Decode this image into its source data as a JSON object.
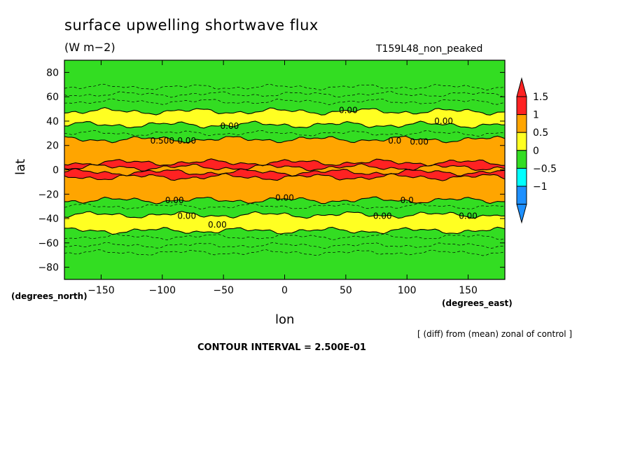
{
  "chart_data": {
    "type": "heatmap",
    "title": "surface upwelling shortwave flux",
    "units": "(W m−2)",
    "run_label": "T159L48_non_peaked",
    "xlabel": "lon",
    "ylabel": "lat",
    "x_unit_label": "(degrees_east)",
    "y_unit_label": "(degrees_north)",
    "xlim": [
      -180,
      180
    ],
    "ylim": [
      -90,
      90
    ],
    "x_ticks": [
      -150,
      -100,
      -50,
      0,
      50,
      100,
      150
    ],
    "y_ticks": [
      80,
      60,
      40,
      20,
      0,
      -20,
      -40,
      -60,
      -80
    ],
    "note": "[ (diff) from (mean) zonal of control ]",
    "contour_interval_text": "CONTOUR INTERVAL = 2.500E-01",
    "colorbar": {
      "labels": [
        "1.5",
        "1",
        "0.5",
        "0",
        "−0.5",
        "−1"
      ],
      "levels": [
        -1.5,
        -1,
        -0.5,
        0,
        0.5,
        1,
        1.5
      ],
      "colors": [
        "#1e90ff",
        "#1e90ff",
        "#00ffff",
        "#33dd22",
        "#ffff22",
        "#ffa500",
        "#ff2222",
        "#ff2222"
      ]
    },
    "zonal_bands": [
      {
        "lat_min": 48,
        "lat_max": 90,
        "value": -0.25
      },
      {
        "lat_min": 37,
        "lat_max": 48,
        "value": 0.25
      },
      {
        "lat_min": 25,
        "lat_max": 37,
        "value": -0.25
      },
      {
        "lat_min": 6,
        "lat_max": 25,
        "value": 0.75
      },
      {
        "lat_min": 2,
        "lat_max": 6,
        "value": 1.75
      },
      {
        "lat_min": -2,
        "lat_max": 2,
        "value": 0.75
      },
      {
        "lat_min": -6,
        "lat_max": -2,
        "value": 1.75
      },
      {
        "lat_min": -25,
        "lat_max": -6,
        "value": 0.75
      },
      {
        "lat_min": -37,
        "lat_max": -25,
        "value": -0.25
      },
      {
        "lat_min": -50,
        "lat_max": -37,
        "value": 0.25
      },
      {
        "lat_min": -90,
        "lat_max": -50,
        "value": -0.25
      }
    ],
    "contour_labels": [
      {
        "text": "0.00",
        "lon": 52,
        "lat": 49
      },
      {
        "text": "0.00",
        "lon": -45,
        "lat": 36
      },
      {
        "text": "0.00",
        "lon": 130,
        "lat": 40
      },
      {
        "text": "0.500",
        "lon": -100,
        "lat": 24
      },
      {
        "text": "0.00",
        "lon": -80,
        "lat": 24
      },
      {
        "text": "0.0",
        "lon": 90,
        "lat": 24
      },
      {
        "text": "0.00",
        "lon": 110,
        "lat": 23
      },
      {
        "text": "0.00",
        "lon": -90,
        "lat": -25
      },
      {
        "text": "0.00",
        "lon": 0,
        "lat": -23
      },
      {
        "text": "0.0",
        "lon": 100,
        "lat": -25
      },
      {
        "text": "0.00",
        "lon": -80,
        "lat": -38
      },
      {
        "text": "0.00",
        "lon": -55,
        "lat": -45
      },
      {
        "text": "0.00",
        "lon": 80,
        "lat": -38
      },
      {
        "text": "0.00",
        "lon": 150,
        "lat": -38
      }
    ]
  }
}
